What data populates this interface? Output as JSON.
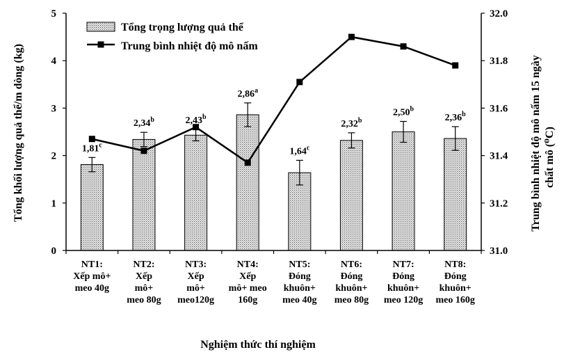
{
  "chart_data": {
    "type": "bar",
    "xlabel": "Nghiệm thức thí nghiệm",
    "categories": [
      [
        "NT1:",
        "Xếp    mô+",
        "meo 40g"
      ],
      [
        "NT2:",
        "Xếp",
        "mô+",
        "meo 80g"
      ],
      [
        "NT3:",
        "Xếp",
        "mô+",
        "meo120g"
      ],
      [
        "NT4:",
        "Xếp",
        "mô+  meo",
        "160g"
      ],
      [
        "NT5:",
        "Đóng",
        "khuôn+",
        "meo 40g"
      ],
      [
        "NT6:",
        "Đóng",
        "khuôn+",
        "meo 80g"
      ],
      [
        "NT7:",
        "Đóng",
        "khuôn+",
        "meo 120g"
      ],
      [
        "NT8:",
        "Đóng",
        "khuôn+",
        "meo 160g"
      ]
    ],
    "ylabel_left": "Tổng khối lượng quả thể/m dòng  (kg)",
    "ylabel_right_lines": [
      "Trung bình nhiệt độ mô nấm 15 ngày",
      "chất mô (⁰C)"
    ],
    "ylim_left": [
      0,
      5
    ],
    "yticks_left": [
      "0",
      "1",
      "2",
      "3",
      "4",
      "5"
    ],
    "ylim_right": [
      31.0,
      32.0
    ],
    "yticks_right": [
      "31.0",
      "31.2",
      "31.4",
      "31.6",
      "31.8",
      "32.0"
    ],
    "grid": false,
    "legend_position": "top-left",
    "series": [
      {
        "name": "Tổng trọng lượng quả thể",
        "kind": "bar",
        "axis": "left",
        "values": [
          1.81,
          2.34,
          2.43,
          2.86,
          1.64,
          2.32,
          2.5,
          2.36
        ],
        "errors": [
          0.15,
          0.15,
          0.12,
          0.25,
          0.26,
          0.16,
          0.22,
          0.25
        ],
        "labels": [
          "1,81",
          "2,34",
          "2,43",
          "2,86",
          "1,64",
          "2,32",
          "2,50",
          "2,36"
        ],
        "letters": [
          "c",
          "b",
          "b",
          "a",
          "c",
          "b",
          "b",
          "b"
        ]
      },
      {
        "name": "Trung bình nhiệt độ mô nấm",
        "kind": "line",
        "axis": "right",
        "values": [
          31.47,
          31.42,
          31.52,
          31.37,
          31.71,
          31.9,
          31.86,
          31.78
        ]
      }
    ]
  }
}
